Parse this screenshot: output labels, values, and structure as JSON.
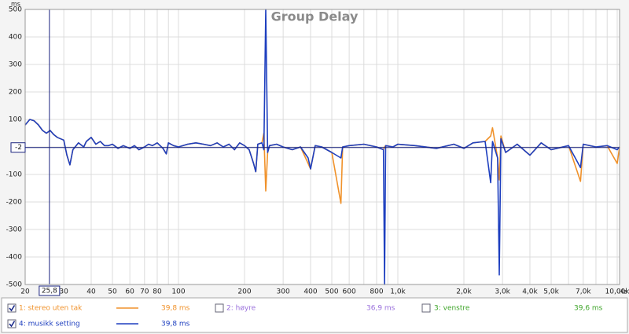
{
  "chart_data": {
    "type": "line",
    "title": "Group Delay",
    "y_unit": "ms",
    "x_unit": "Hz",
    "log_x": true,
    "grid": true,
    "xlim": [
      20,
      10250
    ],
    "ylim": [
      -500,
      500
    ],
    "xticks": [
      20,
      30,
      40,
      50,
      60,
      70,
      80,
      100,
      200,
      300,
      400,
      500,
      600,
      800,
      {
        "value": 1000,
        "label": "1,0k"
      },
      {
        "value": 2000,
        "label": "2,0k"
      },
      {
        "value": 3000,
        "label": "3,0k"
      },
      {
        "value": 4000,
        "label": "4,0k"
      },
      {
        "value": 5000,
        "label": "5,0k"
      },
      {
        "value": 7000,
        "label": "7,0k"
      },
      {
        "value": 10000,
        "label": "10,00k"
      }
    ],
    "xminor_ticks": [
      90,
      700,
      900,
      6000,
      8000,
      9000
    ],
    "yticks": [
      -500,
      -400,
      -300,
      -200,
      -100,
      0,
      100,
      200,
      300,
      400,
      500
    ],
    "cursor": {
      "x": {
        "value": 25.8,
        "label": "25,8"
      },
      "y": -2,
      "color": "#1a237e"
    },
    "x": [
      20,
      21,
      22,
      23,
      24,
      25,
      26,
      27,
      28,
      30,
      31,
      32,
      33,
      35,
      37,
      38,
      40,
      42,
      44,
      46,
      48,
      50,
      53,
      56,
      60,
      63,
      66,
      70,
      73,
      76,
      80,
      85,
      88,
      90,
      95,
      100,
      110,
      120,
      130,
      140,
      150,
      160,
      170,
      180,
      190,
      200,
      210,
      220,
      225,
      230,
      240,
      245,
      250,
      255,
      260,
      280,
      300,
      330,
      360,
      390,
      400,
      420,
      450,
      500,
      550,
      560,
      600,
      700,
      800,
      860,
      870,
      880,
      950,
      1000,
      1200,
      1500,
      1800,
      2000,
      2200,
      2500,
      2650,
      2700,
      2850,
      2900,
      2950,
      3100,
      3500,
      4000,
      4500,
      5000,
      6000,
      6800,
      7000,
      8000,
      9000,
      10000,
      10250
    ],
    "series": [
      {
        "name": "1: stereo uten tak",
        "color": "#f0922b",
        "visible": true,
        "readout": "39,8 ms",
        "values": [
          80,
          100,
          95,
          80,
          60,
          50,
          60,
          45,
          35,
          25,
          -30,
          -65,
          -10,
          15,
          0,
          20,
          35,
          10,
          20,
          5,
          5,
          10,
          -5,
          5,
          -5,
          5,
          -10,
          0,
          10,
          5,
          15,
          -5,
          -25,
          15,
          5,
          0,
          10,
          15,
          10,
          5,
          15,
          0,
          10,
          -10,
          15,
          5,
          -10,
          -60,
          -90,
          10,
          15,
          50,
          -160,
          -20,
          5,
          10,
          0,
          -10,
          0,
          -60,
          -80,
          5,
          0,
          -20,
          -205,
          0,
          5,
          10,
          0,
          -10,
          0,
          5,
          0,
          10,
          5,
          -5,
          10,
          -5,
          15,
          20,
          40,
          70,
          -40,
          -120,
          40,
          -20,
          10,
          -30,
          15,
          -10,
          5,
          -125,
          10,
          0,
          5,
          -60,
          0
        ]
      },
      {
        "name": "2: høyre",
        "color": "#9a70dc",
        "visible": false,
        "readout": "36,9 ms"
      },
      {
        "name": "3: venstre",
        "color": "#3fa52a",
        "visible": false,
        "readout": "39,6 ms"
      },
      {
        "name": "4: musikk setting",
        "color": "#1e3fbf",
        "visible": true,
        "readout": "39,8 ms",
        "values": [
          80,
          100,
          95,
          80,
          60,
          50,
          60,
          45,
          35,
          25,
          -30,
          -65,
          -10,
          15,
          0,
          20,
          35,
          10,
          20,
          5,
          5,
          10,
          -5,
          5,
          -5,
          5,
          -10,
          0,
          10,
          5,
          15,
          -5,
          -25,
          15,
          5,
          0,
          10,
          15,
          10,
          5,
          15,
          0,
          10,
          -10,
          15,
          5,
          -10,
          -60,
          -90,
          10,
          15,
          -10,
          500,
          -20,
          5,
          10,
          0,
          -10,
          0,
          -40,
          -80,
          5,
          0,
          -20,
          -40,
          0,
          5,
          10,
          0,
          -10,
          -500,
          5,
          0,
          10,
          5,
          -5,
          10,
          -5,
          15,
          20,
          -130,
          20,
          -40,
          -465,
          30,
          -20,
          10,
          -30,
          15,
          -10,
          5,
          -75,
          10,
          0,
          5,
          -10,
          0
        ]
      }
    ]
  }
}
